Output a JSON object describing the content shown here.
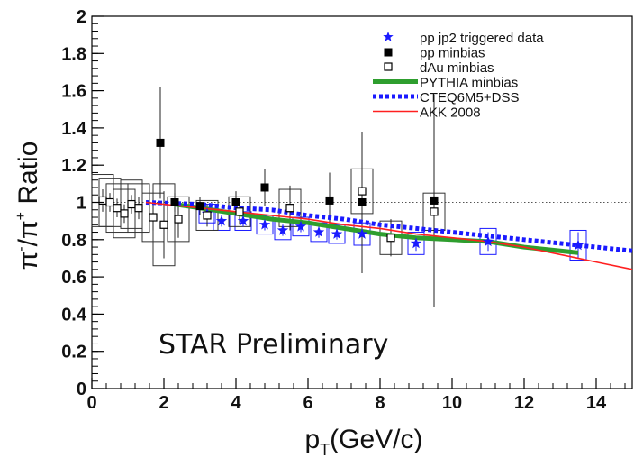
{
  "chart_data": {
    "type": "scatter",
    "title": "",
    "xlabel": {
      "main": "p",
      "sub": "T",
      "rest": "(GeV/c)"
    },
    "ylabel": {
      "p1": "π",
      "s1": "-",
      "p2": "/π",
      "s2": "+",
      "p3": " Ratio"
    },
    "xlim": [
      0,
      15
    ],
    "ylim": [
      0,
      2
    ],
    "x_ticks": [
      "0",
      "2",
      "4",
      "6",
      "8",
      "10",
      "12",
      "14"
    ],
    "y_ticks": [
      "0",
      "0.2",
      "0.4",
      "0.6",
      "0.8",
      "1",
      "1.2",
      "1.4",
      "1.6",
      "1.8",
      "2"
    ],
    "reference_line": 1,
    "annotation": "STAR Preliminary",
    "legend_position": "top-right",
    "legend": [
      {
        "label": "pp jp2 triggered data",
        "marker": "star",
        "color": "#1a1aff"
      },
      {
        "label": "pp minbias",
        "marker": "filled-square",
        "color": "#000000"
      },
      {
        "label": "dAu minbias",
        "marker": "open-square",
        "color": "#000000"
      },
      {
        "label": "PYTHIA minbias",
        "marker": "line-solid",
        "color": "#2e9e2e"
      },
      {
        "label": "CTEQ6M5+DSS",
        "marker": "line-dotted",
        "color": "#1a1aff"
      },
      {
        "label": "AKK 2008",
        "marker": "line-thin",
        "color": "#ff2020"
      }
    ],
    "series": [
      {
        "name": "pp jp2 triggered data",
        "marker": "star",
        "color": "#1a1aff",
        "points": [
          {
            "x": 3.2,
            "y": 0.94,
            "err": 0.03,
            "sys": 0.05
          },
          {
            "x": 3.6,
            "y": 0.9,
            "err": 0.03,
            "sys": 0.05
          },
          {
            "x": 4.2,
            "y": 0.9,
            "err": 0.03,
            "sys": 0.05
          },
          {
            "x": 4.8,
            "y": 0.88,
            "err": 0.03,
            "sys": 0.05
          },
          {
            "x": 5.3,
            "y": 0.85,
            "err": 0.03,
            "sys": 0.05
          },
          {
            "x": 5.8,
            "y": 0.87,
            "err": 0.03,
            "sys": 0.05
          },
          {
            "x": 6.3,
            "y": 0.84,
            "err": 0.03,
            "sys": 0.05
          },
          {
            "x": 6.8,
            "y": 0.83,
            "err": 0.03,
            "sys": 0.05
          },
          {
            "x": 7.5,
            "y": 0.83,
            "err": 0.03,
            "sys": 0.06
          },
          {
            "x": 9.0,
            "y": 0.78,
            "err": 0.04,
            "sys": 0.06
          },
          {
            "x": 11.0,
            "y": 0.79,
            "err": 0.05,
            "sys": 0.07
          },
          {
            "x": 13.5,
            "y": 0.77,
            "err": 0.07,
            "sys": 0.08
          }
        ]
      },
      {
        "name": "pp minbias",
        "marker": "filled-square",
        "color": "#000000",
        "points": [
          {
            "x": 1.9,
            "y": 1.32,
            "err": 0.3
          },
          {
            "x": 2.3,
            "y": 1.0,
            "err": 0.05
          },
          {
            "x": 3.0,
            "y": 0.98,
            "err": 0.05
          },
          {
            "x": 4.0,
            "y": 1.0,
            "err": 0.06
          },
          {
            "x": 4.8,
            "y": 1.08,
            "err": 0.1
          },
          {
            "x": 5.5,
            "y": 0.97,
            "err": 0.12
          },
          {
            "x": 6.6,
            "y": 1.01,
            "err": 0.15
          },
          {
            "x": 7.5,
            "y": 1.0,
            "err": 0.38
          },
          {
            "x": 9.5,
            "y": 1.01,
            "err": 0.57
          }
        ]
      },
      {
        "name": "dAu minbias",
        "marker": "open-square",
        "color": "#000000",
        "points": [
          {
            "x": 0.3,
            "y": 1.01,
            "err": 0.06,
            "sys": 0.14
          },
          {
            "x": 0.5,
            "y": 1.0,
            "err": 0.05,
            "sys": 0.13
          },
          {
            "x": 0.7,
            "y": 0.97,
            "err": 0.05,
            "sys": 0.13
          },
          {
            "x": 0.9,
            "y": 0.94,
            "err": 0.05,
            "sys": 0.13
          },
          {
            "x": 1.1,
            "y": 0.99,
            "err": 0.05,
            "sys": 0.13
          },
          {
            "x": 1.3,
            "y": 0.97,
            "err": 0.06,
            "sys": 0.13
          },
          {
            "x": 1.7,
            "y": 0.92,
            "err": 0.07,
            "sys": 0.13
          },
          {
            "x": 2.0,
            "y": 0.88,
            "err": 0.18,
            "sys": 0.22
          },
          {
            "x": 2.4,
            "y": 0.91,
            "err": 0.1,
            "sys": 0.12
          },
          {
            "x": 3.2,
            "y": 0.93,
            "err": 0.06,
            "sys": 0.08
          },
          {
            "x": 4.1,
            "y": 0.95,
            "err": 0.07,
            "sys": 0.08
          },
          {
            "x": 5.5,
            "y": 0.97,
            "err": 0.1,
            "sys": 0.1
          },
          {
            "x": 7.5,
            "y": 1.06,
            "err": 0.14,
            "sys": 0.12
          },
          {
            "x": 8.3,
            "y": 0.81,
            "err": 0.1,
            "sys": 0.09
          },
          {
            "x": 9.5,
            "y": 0.95,
            "err": 0.12,
            "sys": 0.1
          }
        ]
      },
      {
        "name": "PYTHIA minbias",
        "style": "line-solid",
        "color": "#2e9e2e",
        "points": [
          [
            2.3,
            0.99
          ],
          [
            3.0,
            0.97
          ],
          [
            4.0,
            0.94
          ],
          [
            5.0,
            0.91
          ],
          [
            6.0,
            0.89
          ],
          [
            7.0,
            0.86
          ],
          [
            8.0,
            0.83
          ],
          [
            9.0,
            0.81
          ],
          [
            10.0,
            0.8
          ],
          [
            11.0,
            0.79
          ],
          [
            12.0,
            0.76
          ],
          [
            13.5,
            0.73
          ]
        ]
      },
      {
        "name": "CTEQ6M5+DSS",
        "style": "line-dotted",
        "color": "#1a1aff",
        "points": [
          [
            1.5,
            1.0
          ],
          [
            3.0,
            0.99
          ],
          [
            4.0,
            0.97
          ],
          [
            5.0,
            0.96
          ],
          [
            6.0,
            0.93
          ],
          [
            7.0,
            0.91
          ],
          [
            8.0,
            0.88
          ],
          [
            9.0,
            0.86
          ],
          [
            10.0,
            0.84
          ],
          [
            11.0,
            0.82
          ],
          [
            12.0,
            0.8
          ],
          [
            13.0,
            0.78
          ],
          [
            14.0,
            0.76
          ],
          [
            15.0,
            0.74
          ]
        ]
      },
      {
        "name": "AKK 2008",
        "style": "line-thin",
        "color": "#ff2020",
        "points": [
          [
            1.5,
            1.0
          ],
          [
            3.0,
            0.97
          ],
          [
            4.0,
            0.95
          ],
          [
            5.0,
            0.93
          ],
          [
            6.0,
            0.91
          ],
          [
            7.0,
            0.88
          ],
          [
            8.0,
            0.86
          ],
          [
            9.0,
            0.83
          ],
          [
            10.0,
            0.81
          ],
          [
            11.0,
            0.79
          ],
          [
            12.0,
            0.76
          ],
          [
            13.0,
            0.72
          ],
          [
            14.0,
            0.68
          ],
          [
            15.0,
            0.64
          ]
        ]
      }
    ]
  }
}
